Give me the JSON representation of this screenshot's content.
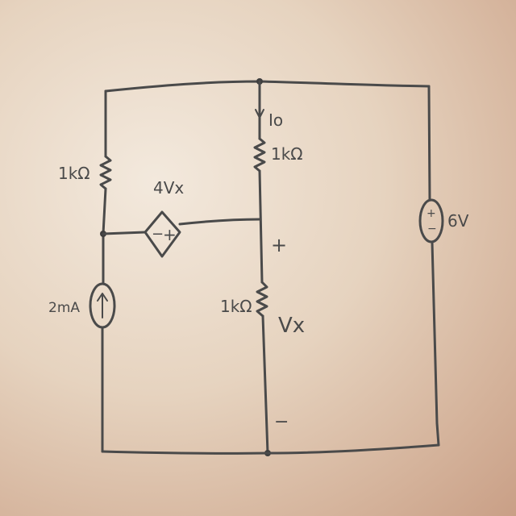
{
  "diagram": {
    "left_resistor_label": "1kΩ",
    "dependent_source_label": "4Vx",
    "dependent_source_minus": "−",
    "dependent_source_plus": "+",
    "current_source_label": "2mA",
    "current_label": "Io",
    "top_resistor_label": "1kΩ",
    "vx_plus": "+",
    "bottom_resistor_label": "1kΩ",
    "vx_label": "Vx",
    "vx_minus": "−",
    "voltage_source_label": "6V",
    "voltage_source_plus": "+",
    "voltage_source_minus": "−"
  }
}
